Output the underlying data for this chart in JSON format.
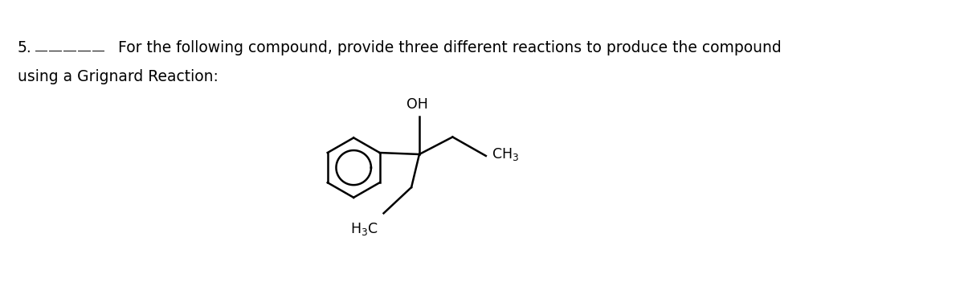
{
  "background_color": "#ffffff",
  "text_color": "#000000",
  "font_size_main": 13.5,
  "font_size_chem": 12.5,
  "fig_width": 12.0,
  "fig_height": 3.82,
  "dpi": 100,
  "label_OH": "OH",
  "label_CH3_right": "CH$_3$",
  "label_H3C_bottom": "H$_3$C",
  "line_width": 1.8
}
